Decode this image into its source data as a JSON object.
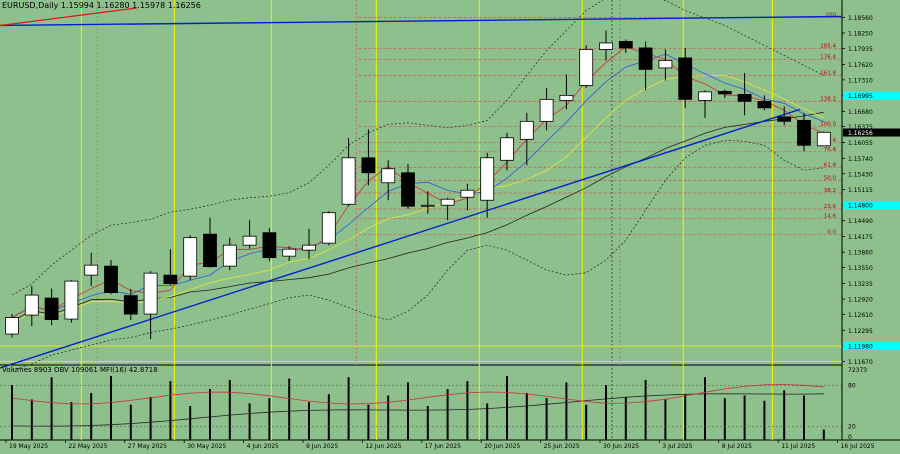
{
  "title_text": "EURUSD,Daily  1.15994  1.16280  1.15978  1.16256",
  "indicator_text": "Volumes 8903  OBV 109061  MFI(16) 42.8718",
  "colors": {
    "bg": "#8dc08d",
    "bull": "#ffffff",
    "bear": "#000000",
    "trend_blue": "#0022cc",
    "trend_red": "#d81818",
    "vline": "#f4f400",
    "fib": "#d95050",
    "price_cyan": "#00ffff",
    "price_black": "#000000",
    "ma_red": "#d03030",
    "ma_blue": "#2a5bd8",
    "ma_yellow": "#e6e63a",
    "ma_black": "#202020"
  },
  "chart_data": [
    {
      "type": "candlestick",
      "symbol": "EURUSD",
      "timeframe": "Daily",
      "ohlc_last": {
        "open": 1.15994,
        "high": 1.1628,
        "low": 1.15978,
        "close": 1.16256
      },
      "ylim": [
        1.116,
        1.1875
      ],
      "price_ticks": [
        "1.18560",
        "1.18250",
        "1.17935",
        "1.17620",
        "1.17310",
        "1.16995",
        "1.16680",
        "1.16375",
        "1.16055",
        "1.15740",
        "1.15430",
        "1.15115",
        "1.14800",
        "1.14490",
        "1.14175",
        "1.13860",
        "1.13550",
        "1.13235",
        "1.12920",
        "1.12610",
        "1.12295",
        "1.11980",
        "1.11670"
      ],
      "highlight_prices": [
        {
          "label": "1.16995",
          "value": 1.16995,
          "color": "cyan"
        },
        {
          "label": "1.16256",
          "value": 1.16256,
          "color": "black"
        },
        {
          "label": "1.14800",
          "value": 1.148,
          "color": "cyan"
        },
        {
          "label": "1.11980",
          "value": 1.1198,
          "color": "cyan"
        }
      ],
      "date_labels": [
        {
          "label": "19 May 2025",
          "index": 0
        },
        {
          "label": "22 May 2025",
          "index": 3
        },
        {
          "label": "27 May 2025",
          "index": 6
        },
        {
          "label": "30 May 2025",
          "index": 9
        },
        {
          "label": "4 Jun 2025",
          "index": 12
        },
        {
          "label": "9 Jun 2025",
          "index": 15
        },
        {
          "label": "12 Jun 2025",
          "index": 18
        },
        {
          "label": "17 Jun 2025",
          "index": 21
        },
        {
          "label": "20 Jun 2025",
          "index": 24
        },
        {
          "label": "25 Jun 2025",
          "index": 27
        },
        {
          "label": "30 Jun 2025",
          "index": 30
        },
        {
          "label": "3 Jul 2025",
          "index": 33
        },
        {
          "label": "8 Jul 2025",
          "index": 36
        },
        {
          "label": "11 Jul 2025",
          "index": 39
        },
        {
          "label": "16 Jul 2025",
          "index": 42
        }
      ],
      "candles": [
        {
          "o": 1.1222,
          "h": 1.1262,
          "l": 1.1215,
          "c": 1.1255
        },
        {
          "o": 1.126,
          "h": 1.1318,
          "l": 1.1238,
          "c": 1.13
        },
        {
          "o": 1.1294,
          "h": 1.1313,
          "l": 1.124,
          "c": 1.1251
        },
        {
          "o": 1.1252,
          "h": 1.133,
          "l": 1.1245,
          "c": 1.1328
        },
        {
          "o": 1.134,
          "h": 1.1385,
          "l": 1.1318,
          "c": 1.136
        },
        {
          "o": 1.1358,
          "h": 1.137,
          "l": 1.1302,
          "c": 1.1305
        },
        {
          "o": 1.1299,
          "h": 1.1312,
          "l": 1.125,
          "c": 1.1262
        },
        {
          "o": 1.1262,
          "h": 1.1348,
          "l": 1.1212,
          "c": 1.1344
        },
        {
          "o": 1.134,
          "h": 1.1392,
          "l": 1.132,
          "c": 1.1323
        },
        {
          "o": 1.1338,
          "h": 1.142,
          "l": 1.133,
          "c": 1.1415
        },
        {
          "o": 1.1422,
          "h": 1.1455,
          "l": 1.1355,
          "c": 1.1357
        },
        {
          "o": 1.1358,
          "h": 1.1415,
          "l": 1.135,
          "c": 1.14
        },
        {
          "o": 1.14,
          "h": 1.145,
          "l": 1.1393,
          "c": 1.1418
        },
        {
          "o": 1.1425,
          "h": 1.1434,
          "l": 1.1368,
          "c": 1.1375
        },
        {
          "o": 1.1378,
          "h": 1.1398,
          "l": 1.1368,
          "c": 1.1392
        },
        {
          "o": 1.139,
          "h": 1.1433,
          "l": 1.1372,
          "c": 1.14
        },
        {
          "o": 1.1404,
          "h": 1.1468,
          "l": 1.14,
          "c": 1.1465
        },
        {
          "o": 1.1482,
          "h": 1.1615,
          "l": 1.1478,
          "c": 1.1575
        },
        {
          "o": 1.1575,
          "h": 1.1632,
          "l": 1.152,
          "c": 1.1545
        },
        {
          "o": 1.1525,
          "h": 1.157,
          "l": 1.149,
          "c": 1.1553
        },
        {
          "o": 1.1545,
          "h": 1.1563,
          "l": 1.1473,
          "c": 1.1478
        },
        {
          "o": 1.1478,
          "h": 1.1508,
          "l": 1.1463,
          "c": 1.148
        },
        {
          "o": 1.148,
          "h": 1.1495,
          "l": 1.145,
          "c": 1.1492
        },
        {
          "o": 1.1496,
          "h": 1.1523,
          "l": 1.147,
          "c": 1.151
        },
        {
          "o": 1.149,
          "h": 1.1585,
          "l": 1.1455,
          "c": 1.1575
        },
        {
          "o": 1.157,
          "h": 1.1625,
          "l": 1.155,
          "c": 1.1615
        },
        {
          "o": 1.1612,
          "h": 1.1665,
          "l": 1.156,
          "c": 1.1648
        },
        {
          "o": 1.1648,
          "h": 1.1715,
          "l": 1.163,
          "c": 1.1692
        },
        {
          "o": 1.169,
          "h": 1.1742,
          "l": 1.1672,
          "c": 1.17
        },
        {
          "o": 1.172,
          "h": 1.18,
          "l": 1.1715,
          "c": 1.1792
        },
        {
          "o": 1.1792,
          "h": 1.183,
          "l": 1.177,
          "c": 1.1805
        },
        {
          "o": 1.1808,
          "h": 1.1812,
          "l": 1.1785,
          "c": 1.1795
        },
        {
          "o": 1.1795,
          "h": 1.1808,
          "l": 1.171,
          "c": 1.1752
        },
        {
          "o": 1.1755,
          "h": 1.1792,
          "l": 1.173,
          "c": 1.177
        },
        {
          "o": 1.1775,
          "h": 1.1795,
          "l": 1.1675,
          "c": 1.1692
        },
        {
          "o": 1.169,
          "h": 1.171,
          "l": 1.1655,
          "c": 1.1707
        },
        {
          "o": 1.1708,
          "h": 1.1712,
          "l": 1.1695,
          "c": 1.1703
        },
        {
          "o": 1.1702,
          "h": 1.1745,
          "l": 1.166,
          "c": 1.1688
        },
        {
          "o": 1.1688,
          "h": 1.17,
          "l": 1.167,
          "c": 1.1675
        },
        {
          "o": 1.1657,
          "h": 1.1678,
          "l": 1.164,
          "c": 1.1648
        },
        {
          "o": 1.165,
          "h": 1.1665,
          "l": 1.1588,
          "c": 1.16
        },
        {
          "o": 1.1599,
          "h": 1.1628,
          "l": 1.1598,
          "c": 1.1626
        }
      ],
      "volume_bars": [
        4.2,
        3.1,
        4.8,
        2.9,
        3.6,
        4.9,
        2.7,
        3.3,
        4.5,
        2.6,
        3.9,
        4.6,
        2.8,
        3.2,
        4.7,
        2.9,
        3.5,
        4.8,
        2.7,
        3.4,
        4.4,
        2.6,
        3.9,
        4.5,
        2.8,
        4.9,
        3.6,
        3.2,
        4.4,
        2.7,
        4.2,
        3.3,
        4.6,
        3.1,
        3.5,
        4.8,
        3.2,
        3.4,
        3.0,
        3.8,
        3.4,
        0.8
      ],
      "fib_levels": [
        {
          "label": "200",
          "value": 1.1856
        },
        {
          "label": "185.4",
          "value": 1.17935
        },
        {
          "label": "176.4",
          "value": 1.1772
        },
        {
          "label": "161.8",
          "value": 1.174
        },
        {
          "label": "138.2",
          "value": 1.1688
        },
        {
          "label": "100.0",
          "value": 1.16375
        },
        {
          "label": "85.4",
          "value": 1.16055
        },
        {
          "label": "76.4",
          "value": 1.1587
        },
        {
          "label": "61.8",
          "value": 1.1556
        },
        {
          "label": "50.0",
          "value": 1.153
        },
        {
          "label": "38.2",
          "value": 1.15045
        },
        {
          "label": "23.6",
          "value": 1.14725
        },
        {
          "label": "14.6",
          "value": 1.1453
        },
        {
          "label": "0.0",
          "value": 1.1421
        }
      ],
      "oscillator_levels": {
        "top": "72373",
        "upper": "80",
        "lower": "20",
        "bottom": "0"
      }
    }
  ]
}
